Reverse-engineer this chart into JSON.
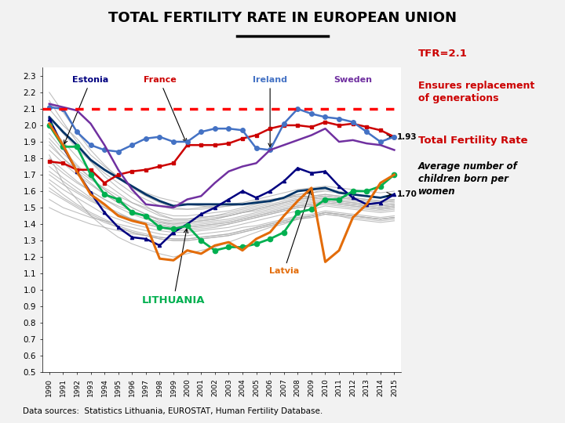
{
  "title": "TOTAL FERTILITY RATE IN EUROPEAN UNION",
  "years": [
    1990,
    1991,
    1992,
    1993,
    1994,
    1995,
    1996,
    1997,
    1998,
    1999,
    2000,
    2001,
    2002,
    2003,
    2004,
    2005,
    2006,
    2007,
    2008,
    2009,
    2010,
    2011,
    2012,
    2013,
    2014,
    2015
  ],
  "replacement_level": 2.1,
  "ylim": [
    0.5,
    2.35
  ],
  "yticks": [
    0.5,
    0.6,
    0.7,
    0.8,
    0.9,
    1.0,
    1.1,
    1.2,
    1.3,
    1.4,
    1.5,
    1.6,
    1.7,
    1.8,
    1.9,
    2.0,
    2.1,
    2.2,
    2.3
  ],
  "france": [
    1.78,
    1.77,
    1.73,
    1.73,
    1.65,
    1.7,
    1.72,
    1.73,
    1.75,
    1.77,
    1.88,
    1.88,
    1.88,
    1.89,
    1.92,
    1.94,
    1.98,
    2.0,
    2.0,
    1.99,
    2.02,
    2.0,
    2.01,
    1.99,
    1.97,
    1.93
  ],
  "ireland": [
    2.11,
    2.1,
    1.96,
    1.88,
    1.85,
    1.84,
    1.88,
    1.92,
    1.93,
    1.9,
    1.9,
    1.96,
    1.98,
    1.98,
    1.97,
    1.86,
    1.85,
    2.01,
    2.1,
    2.07,
    2.05,
    2.04,
    2.02,
    1.96,
    1.9,
    1.93
  ],
  "sweden": [
    2.13,
    2.11,
    2.09,
    2.01,
    1.88,
    1.73,
    1.61,
    1.52,
    1.51,
    1.5,
    1.55,
    1.57,
    1.65,
    1.72,
    1.75,
    1.77,
    1.85,
    1.88,
    1.91,
    1.94,
    1.98,
    1.9,
    1.91,
    1.89,
    1.88,
    1.85
  ],
  "estonia": [
    2.04,
    1.87,
    1.72,
    1.59,
    1.47,
    1.38,
    1.32,
    1.31,
    1.27,
    1.35,
    1.4,
    1.46,
    1.5,
    1.55,
    1.6,
    1.56,
    1.6,
    1.66,
    1.74,
    1.71,
    1.72,
    1.63,
    1.56,
    1.52,
    1.53,
    1.58
  ],
  "lithuania": [
    2.0,
    1.87,
    1.87,
    1.7,
    1.58,
    1.55,
    1.47,
    1.45,
    1.38,
    1.37,
    1.39,
    1.3,
    1.24,
    1.26,
    1.26,
    1.28,
    1.31,
    1.35,
    1.47,
    1.49,
    1.55,
    1.55,
    1.6,
    1.6,
    1.63,
    1.7
  ],
  "latvia": [
    2.01,
    1.88,
    1.72,
    1.58,
    1.52,
    1.45,
    1.42,
    1.4,
    1.19,
    1.18,
    1.24,
    1.22,
    1.27,
    1.29,
    1.24,
    1.31,
    1.35,
    1.45,
    1.54,
    1.62,
    1.17,
    1.24,
    1.44,
    1.52,
    1.65,
    1.7
  ],
  "eu_avg": [
    2.05,
    1.96,
    1.88,
    1.79,
    1.73,
    1.68,
    1.63,
    1.58,
    1.54,
    1.51,
    1.52,
    1.52,
    1.52,
    1.52,
    1.52,
    1.53,
    1.54,
    1.56,
    1.6,
    1.61,
    1.62,
    1.59,
    1.58,
    1.57,
    1.56,
    1.58
  ],
  "grey_countries": [
    [
      1.82,
      1.65,
      1.55,
      1.45,
      1.38,
      1.32,
      1.28,
      1.25,
      1.22,
      1.2,
      1.22,
      1.24,
      1.26,
      1.29,
      1.32,
      1.35,
      1.38,
      1.4,
      1.43,
      1.44,
      1.46,
      1.45,
      1.43,
      1.42,
      1.41,
      1.42
    ],
    [
      2.1,
      2.0,
      1.92,
      1.82,
      1.75,
      1.69,
      1.63,
      1.59,
      1.56,
      1.54,
      1.52,
      1.51,
      1.5,
      1.51,
      1.52,
      1.54,
      1.55,
      1.56,
      1.57,
      1.56,
      1.55,
      1.54,
      1.53,
      1.52,
      1.51,
      1.52
    ],
    [
      1.9,
      1.8,
      1.72,
      1.65,
      1.58,
      1.53,
      1.48,
      1.44,
      1.41,
      1.4,
      1.41,
      1.42,
      1.43,
      1.45,
      1.47,
      1.48,
      1.5,
      1.52,
      1.54,
      1.55,
      1.56,
      1.55,
      1.54,
      1.53,
      1.52,
      1.53
    ],
    [
      1.6,
      1.55,
      1.5,
      1.45,
      1.41,
      1.38,
      1.35,
      1.33,
      1.31,
      1.3,
      1.3,
      1.31,
      1.32,
      1.33,
      1.35,
      1.37,
      1.39,
      1.41,
      1.43,
      1.45,
      1.47,
      1.46,
      1.45,
      1.44,
      1.43,
      1.44
    ],
    [
      1.75,
      1.68,
      1.62,
      1.56,
      1.51,
      1.47,
      1.43,
      1.4,
      1.38,
      1.36,
      1.36,
      1.37,
      1.38,
      1.4,
      1.42,
      1.44,
      1.46,
      1.48,
      1.5,
      1.51,
      1.52,
      1.51,
      1.5,
      1.49,
      1.48,
      1.49
    ],
    [
      1.55,
      1.5,
      1.47,
      1.44,
      1.42,
      1.4,
      1.38,
      1.36,
      1.34,
      1.33,
      1.33,
      1.34,
      1.35,
      1.36,
      1.38,
      1.39,
      1.41,
      1.43,
      1.45,
      1.46,
      1.48,
      1.47,
      1.46,
      1.45,
      1.44,
      1.45
    ],
    [
      1.95,
      1.85,
      1.76,
      1.68,
      1.61,
      1.55,
      1.5,
      1.46,
      1.43,
      1.41,
      1.41,
      1.42,
      1.43,
      1.45,
      1.47,
      1.49,
      1.51,
      1.53,
      1.55,
      1.56,
      1.57,
      1.56,
      1.55,
      1.54,
      1.53,
      1.54
    ],
    [
      2.2,
      2.08,
      1.96,
      1.85,
      1.76,
      1.68,
      1.62,
      1.57,
      1.53,
      1.5,
      1.49,
      1.49,
      1.5,
      1.51,
      1.52,
      1.53,
      1.54,
      1.55,
      1.57,
      1.57,
      1.58,
      1.57,
      1.56,
      1.55,
      1.54,
      1.55
    ],
    [
      1.65,
      1.58,
      1.52,
      1.47,
      1.43,
      1.39,
      1.36,
      1.34,
      1.32,
      1.31,
      1.31,
      1.32,
      1.33,
      1.34,
      1.36,
      1.38,
      1.4,
      1.42,
      1.44,
      1.45,
      1.47,
      1.46,
      1.45,
      1.44,
      1.43,
      1.44
    ],
    [
      1.88,
      1.8,
      1.73,
      1.67,
      1.62,
      1.57,
      1.53,
      1.5,
      1.47,
      1.45,
      1.45,
      1.46,
      1.47,
      1.48,
      1.5,
      1.52,
      1.54,
      1.56,
      1.58,
      1.59,
      1.6,
      1.59,
      1.58,
      1.57,
      1.56,
      1.57
    ],
    [
      2.0,
      1.9,
      1.81,
      1.72,
      1.65,
      1.59,
      1.53,
      1.49,
      1.45,
      1.43,
      1.43,
      1.44,
      1.45,
      1.46,
      1.48,
      1.5,
      1.52,
      1.54,
      1.56,
      1.57,
      1.58,
      1.57,
      1.56,
      1.55,
      1.54,
      1.55
    ],
    [
      1.7,
      1.64,
      1.59,
      1.54,
      1.5,
      1.46,
      1.43,
      1.41,
      1.39,
      1.38,
      1.38,
      1.39,
      1.4,
      1.41,
      1.43,
      1.45,
      1.47,
      1.49,
      1.51,
      1.52,
      1.54,
      1.53,
      1.52,
      1.51,
      1.5,
      1.51
    ],
    [
      1.78,
      1.71,
      1.65,
      1.6,
      1.55,
      1.51,
      1.48,
      1.45,
      1.43,
      1.42,
      1.42,
      1.43,
      1.44,
      1.45,
      1.47,
      1.49,
      1.51,
      1.53,
      1.55,
      1.56,
      1.57,
      1.56,
      1.55,
      1.54,
      1.53,
      1.54
    ],
    [
      1.5,
      1.46,
      1.43,
      1.4,
      1.38,
      1.36,
      1.34,
      1.33,
      1.32,
      1.31,
      1.31,
      1.32,
      1.33,
      1.34,
      1.36,
      1.38,
      1.4,
      1.42,
      1.44,
      1.45,
      1.47,
      1.46,
      1.45,
      1.44,
      1.43,
      1.44
    ],
    [
      2.05,
      1.95,
      1.86,
      1.78,
      1.71,
      1.65,
      1.59,
      1.55,
      1.51,
      1.49,
      1.49,
      1.5,
      1.51,
      1.52,
      1.53,
      1.55,
      1.57,
      1.59,
      1.61,
      1.62,
      1.63,
      1.62,
      1.61,
      1.6,
      1.59,
      1.6
    ],
    [
      1.85,
      1.77,
      1.7,
      1.64,
      1.58,
      1.53,
      1.48,
      1.44,
      1.41,
      1.39,
      1.39,
      1.4,
      1.41,
      1.42,
      1.44,
      1.46,
      1.48,
      1.5,
      1.52,
      1.53,
      1.54,
      1.53,
      1.52,
      1.51,
      1.5,
      1.51
    ],
    [
      1.62,
      1.56,
      1.51,
      1.46,
      1.42,
      1.38,
      1.35,
      1.33,
      1.31,
      1.3,
      1.3,
      1.31,
      1.32,
      1.33,
      1.35,
      1.37,
      1.39,
      1.41,
      1.43,
      1.44,
      1.46,
      1.45,
      1.44,
      1.43,
      1.42,
      1.43
    ],
    [
      1.92,
      1.83,
      1.75,
      1.68,
      1.61,
      1.55,
      1.5,
      1.46,
      1.42,
      1.4,
      1.4,
      1.41,
      1.42,
      1.43,
      1.45,
      1.47,
      1.49,
      1.51,
      1.53,
      1.54,
      1.55,
      1.54,
      1.53,
      1.52,
      1.51,
      1.52
    ],
    [
      1.72,
      1.66,
      1.6,
      1.55,
      1.5,
      1.46,
      1.43,
      1.4,
      1.38,
      1.37,
      1.37,
      1.38,
      1.39,
      1.4,
      1.42,
      1.44,
      1.46,
      1.48,
      1.5,
      1.51,
      1.53,
      1.52,
      1.51,
      1.5,
      1.49,
      1.5
    ],
    [
      1.8,
      1.73,
      1.66,
      1.6,
      1.55,
      1.5,
      1.46,
      1.43,
      1.4,
      1.38,
      1.38,
      1.39,
      1.4,
      1.41,
      1.43,
      1.45,
      1.47,
      1.49,
      1.51,
      1.52,
      1.53,
      1.52,
      1.51,
      1.5,
      1.49,
      1.5
    ],
    [
      2.15,
      2.02,
      1.9,
      1.78,
      1.69,
      1.62,
      1.56,
      1.51,
      1.46,
      1.43,
      1.43,
      1.44,
      1.45,
      1.47,
      1.49,
      1.51,
      1.53,
      1.56,
      1.58,
      1.59,
      1.61,
      1.6,
      1.58,
      1.57,
      1.56,
      1.57
    ],
    [
      1.67,
      1.61,
      1.56,
      1.51,
      1.46,
      1.43,
      1.4,
      1.38,
      1.36,
      1.35,
      1.35,
      1.36,
      1.37,
      1.38,
      1.4,
      1.42,
      1.44,
      1.46,
      1.48,
      1.49,
      1.51,
      1.5,
      1.49,
      1.48,
      1.47,
      1.48
    ]
  ],
  "background_color": "#f2f2f2",
  "plot_bg": "#ffffff",
  "france_color": "#cc0000",
  "ireland_color": "#4472c4",
  "sweden_color": "#7030a0",
  "estonia_color": "#000080",
  "eu_avg_color": "#003366",
  "lithuania_color": "#00b050",
  "latvia_color": "#e36c09",
  "replacement_color": "#ff0000",
  "annotation_box_color": "#ffff00",
  "grey_lines_color": "#aaaaaa",
  "source_text": "Data sources:  Statistics Lithuania, EUROSTAT, Human Fertility Database."
}
